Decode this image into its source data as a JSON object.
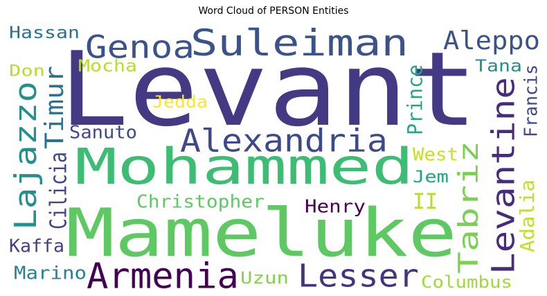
{
  "chart_data": {
    "type": "wordcloud",
    "title": "Word Cloud of PERSON Entities",
    "words": [
      {
        "text": "Levant",
        "color": "#443983"
      },
      {
        "text": "Mameluke",
        "color": "#5ec962"
      },
      {
        "text": "Mohammed",
        "color": "#3dbc74"
      },
      {
        "text": "Suleiman",
        "color": "#3b528b"
      },
      {
        "text": "Armenia",
        "color": "#440154"
      },
      {
        "text": "Lesser",
        "color": "#46337f"
      },
      {
        "text": "Levantine",
        "color": "#472c7a"
      },
      {
        "text": "Lajazzo",
        "color": "#21918c"
      },
      {
        "text": "Alexandria",
        "color": "#3e4989"
      },
      {
        "text": "Genoa",
        "color": "#3b528b"
      },
      {
        "text": "Tabriz",
        "color": "#7ad151"
      },
      {
        "text": "Timur",
        "color": "#2c728e"
      },
      {
        "text": "Aleppo",
        "color": "#3b528b"
      },
      {
        "text": "Christopher",
        "color": "#5ec962"
      },
      {
        "text": "Henry",
        "color": "#440154"
      },
      {
        "text": "Kaffa",
        "color": "#433e85"
      },
      {
        "text": "Marino",
        "color": "#26828e"
      },
      {
        "text": "Uzun",
        "color": "#84d44b"
      },
      {
        "text": "Columbus",
        "color": "#a0da39"
      },
      {
        "text": "Hassan",
        "color": "#2c728e"
      },
      {
        "text": "Don",
        "color": "#b5de2b"
      },
      {
        "text": "Mocha",
        "color": "#b8de29"
      },
      {
        "text": "Jedda",
        "color": "#fde725"
      },
      {
        "text": "Sanuto",
        "color": "#3e4989"
      },
      {
        "text": "Cilicia",
        "color": "#404688"
      },
      {
        "text": "Prince",
        "color": "#22a884"
      },
      {
        "text": "West",
        "color": "#c8e020"
      },
      {
        "text": "Jem",
        "color": "#20a386"
      },
      {
        "text": "II",
        "color": "#b5de2b"
      },
      {
        "text": "Tana",
        "color": "#21918c"
      },
      {
        "text": "Francis",
        "color": "#404688"
      },
      {
        "text": "Adalia",
        "color": "#c2df23"
      }
    ]
  }
}
